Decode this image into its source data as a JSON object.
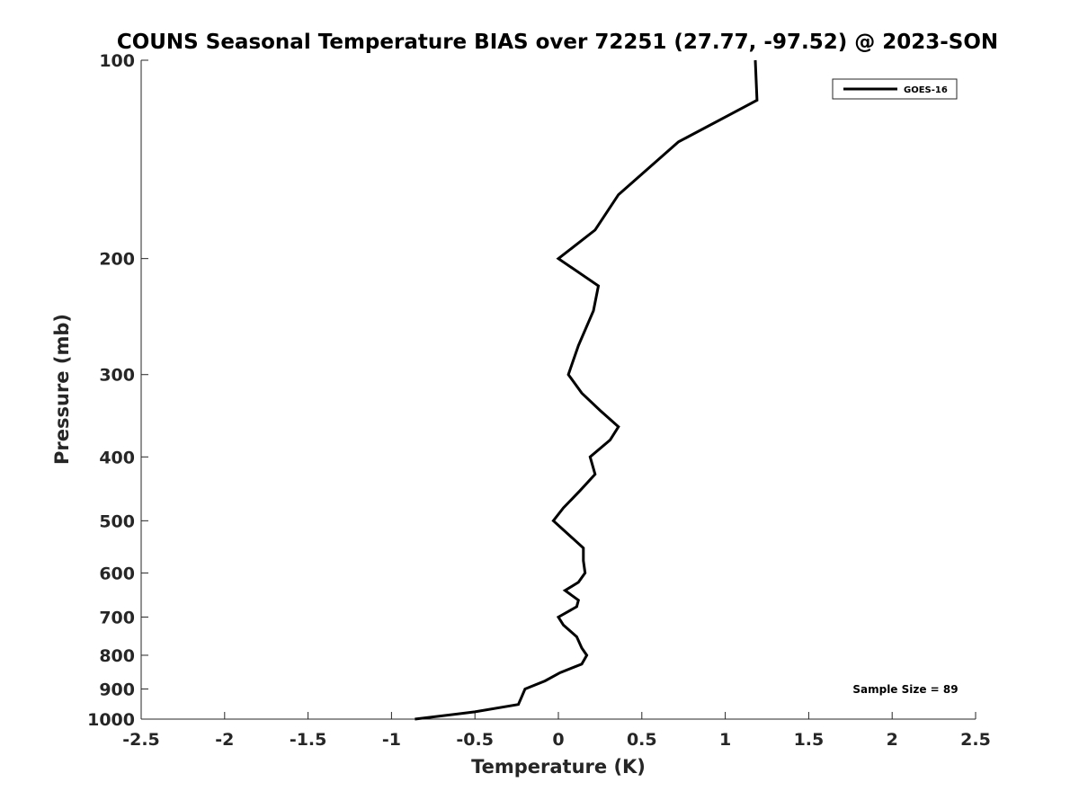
{
  "chart_data": {
    "type": "line",
    "title": "COUNS Seasonal Temperature BIAS over 72251 (27.77, -97.52) @ 2023-SON",
    "xlabel": "Temperature (K)",
    "ylabel": "Pressure (mb)",
    "xlim": [
      -2.5,
      2.5
    ],
    "ylim": [
      100,
      1000
    ],
    "y_scale": "log",
    "y_reversed": true,
    "x_ticks": [
      "-2.5",
      "-2",
      "-1.5",
      "-1",
      "-0.5",
      "0",
      "0.5",
      "1",
      "1.5",
      "2",
      "2.5"
    ],
    "y_ticks": [
      "100",
      "200",
      "300",
      "400",
      "500",
      "600",
      "700",
      "800",
      "900",
      "1000"
    ],
    "grid": false,
    "legend_position": "top-right",
    "series": [
      {
        "name": "GOES-16",
        "color": "#000000",
        "points": [
          {
            "p": 100,
            "t": 1.18
          },
          {
            "p": 115,
            "t": 1.19
          },
          {
            "p": 133,
            "t": 0.72
          },
          {
            "p": 160,
            "t": 0.36
          },
          {
            "p": 181,
            "t": 0.22
          },
          {
            "p": 200,
            "t": 0.0
          },
          {
            "p": 220,
            "t": 0.24
          },
          {
            "p": 240,
            "t": 0.21
          },
          {
            "p": 271,
            "t": 0.12
          },
          {
            "p": 300,
            "t": 0.06
          },
          {
            "p": 320,
            "t": 0.14
          },
          {
            "p": 340,
            "t": 0.25
          },
          {
            "p": 360,
            "t": 0.36
          },
          {
            "p": 377,
            "t": 0.31
          },
          {
            "p": 400,
            "t": 0.19
          },
          {
            "p": 425,
            "t": 0.22
          },
          {
            "p": 450,
            "t": 0.13
          },
          {
            "p": 478,
            "t": 0.03
          },
          {
            "p": 500,
            "t": -0.03
          },
          {
            "p": 550,
            "t": 0.15
          },
          {
            "p": 575,
            "t": 0.15
          },
          {
            "p": 600,
            "t": 0.16
          },
          {
            "p": 620,
            "t": 0.12
          },
          {
            "p": 638,
            "t": 0.04
          },
          {
            "p": 660,
            "t": 0.12
          },
          {
            "p": 675,
            "t": 0.11
          },
          {
            "p": 700,
            "t": 0.0
          },
          {
            "p": 720,
            "t": 0.03
          },
          {
            "p": 750,
            "t": 0.11
          },
          {
            "p": 780,
            "t": 0.14
          },
          {
            "p": 800,
            "t": 0.17
          },
          {
            "p": 825,
            "t": 0.14
          },
          {
            "p": 850,
            "t": 0.01
          },
          {
            "p": 875,
            "t": -0.08
          },
          {
            "p": 900,
            "t": -0.2
          },
          {
            "p": 925,
            "t": -0.22
          },
          {
            "p": 950,
            "t": -0.24
          },
          {
            "p": 975,
            "t": -0.5
          },
          {
            "p": 1000,
            "t": -0.86
          }
        ]
      }
    ],
    "annotations": [
      "Sample Size = 89"
    ]
  }
}
